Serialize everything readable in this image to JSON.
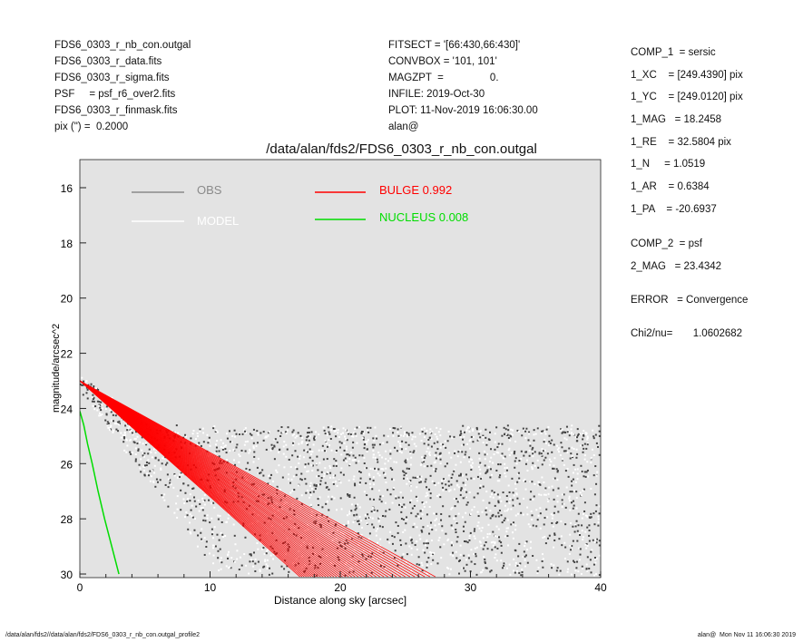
{
  "header_left": [
    "FDS6_0303_r_nb_con.outgal",
    "FDS6_0303_r_data.fits",
    "FDS6_0303_r_sigma.fits",
    "PSF     = psf_r6_over2.fits",
    "FDS6_0303_r_finmask.fits",
    "pix (\") =  0.2000"
  ],
  "header_mid": [
    "FITSECT = '[66:430,66:430]'",
    "CONVBOX = '101, 101'",
    "MAGZPT  =                0.",
    "INFILE: 2019-Oct-30",
    "PLOT: 11-Nov-2019 16:06:30.00",
    "alan@"
  ],
  "params": [
    "COMP_1  = sersic",
    "1_XC    = [249.4390] pix",
    "1_YC    = [249.0120] pix",
    "1_MAG   = 18.2458",
    "1_RE    = 32.5804 pix",
    "1_N     = 1.0519",
    "1_AR    = 0.6384",
    "1_PA    = -20.6937",
    "COMP_2  = psf",
    "2_MAG   = 23.4342",
    "ERROR   = Convergence",
    "Chi2/nu=       1.0602682"
  ],
  "footer_left": "/data/alan/fds2//data/alan/fds2/FDS6_0303_r_nb_con.outgal_profile2",
  "footer_right": "alan@  Mon Nov 11 16:06:30 2019",
  "chart_data": {
    "type": "scatter",
    "title": "/data/alan/fds2/FDS6_0303_r_nb_con.outgal",
    "xlabel": "Distance along sky [arcsec]",
    "ylabel": "magnitude/arcsec^2",
    "xlim": [
      0,
      40
    ],
    "ylim": [
      30.1,
      15
    ],
    "y_inverted": true,
    "xticks": [
      "0",
      "10",
      "20",
      "30",
      "40"
    ],
    "yticks": [
      "16",
      "18",
      "20",
      "22",
      "24",
      "26",
      "28",
      "30"
    ],
    "grid": false,
    "background": "#e3e3e3",
    "legend": [
      {
        "label": "OBS",
        "color": "#8a8a8a"
      },
      {
        "label": "MODEL",
        "color": "#ffffff"
      },
      {
        "label": "BULGE  0.992",
        "color": "#ff0000"
      },
      {
        "label": "NUCLEUS  0.008",
        "color": "#00dd00"
      }
    ],
    "series": [
      {
        "name": "BULGE",
        "color": "#ff0000",
        "band": {
          "inner_edge": [
            [
              0,
              23.0
            ],
            [
              10,
              25.6
            ],
            [
              20,
              28.2
            ],
            [
              26.6,
              30.0
            ]
          ],
          "outer_edge": [
            [
              0,
              23.0
            ],
            [
              5,
              25.0
            ],
            [
              10,
              27.0
            ],
            [
              16.5,
              29.6
            ],
            [
              17.5,
              30.0
            ]
          ]
        }
      },
      {
        "name": "NUCLEUS",
        "color": "#00dd00",
        "points": [
          [
            0,
            24.1
          ],
          [
            0.3,
            24.6
          ],
          [
            0.6,
            25.3
          ],
          [
            0.95,
            26.0
          ],
          [
            1.4,
            27.0
          ],
          [
            1.9,
            28.0
          ],
          [
            2.45,
            29.0
          ],
          [
            3.0,
            30.0
          ]
        ]
      },
      {
        "name": "OBS",
        "colors": [
          "#444444",
          "#ffffff"
        ]
      }
    ]
  }
}
